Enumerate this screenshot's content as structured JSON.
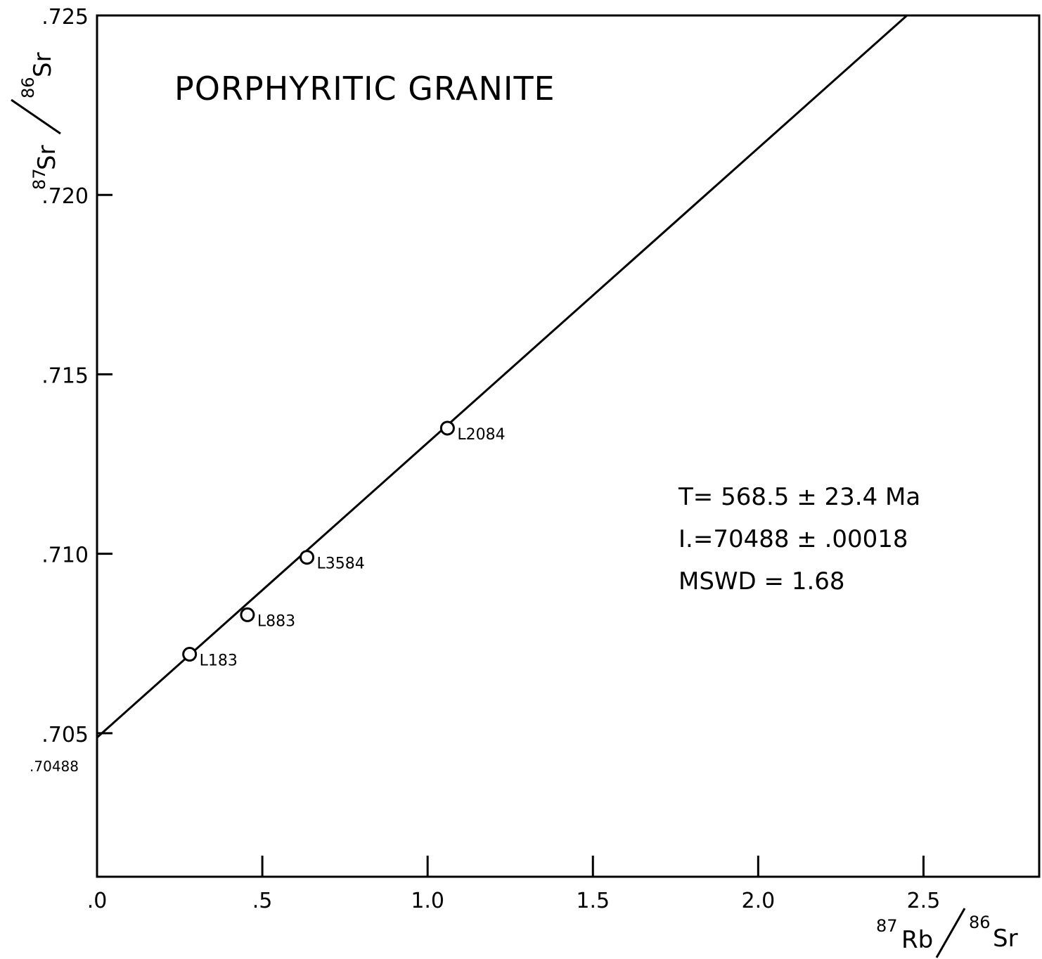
{
  "chart_data": {
    "type": "scatter",
    "title": "PORPHYRITIC GRANITE",
    "xlabel": {
      "iso1": "87",
      "el1": "Rb",
      "iso2": "86",
      "el2": "Sr"
    },
    "ylabel": {
      "iso1": "87",
      "el1": "Sr",
      "iso2": "86",
      "el2": "Sr"
    },
    "xlim": [
      0,
      2.85
    ],
    "ylim": [
      0.701,
      0.725
    ],
    "x_ticks": [
      {
        "value": 0.0,
        "label": ".0"
      },
      {
        "value": 0.5,
        "label": ".5"
      },
      {
        "value": 1.0,
        "label": "1.0"
      },
      {
        "value": 1.5,
        "label": "1.5"
      },
      {
        "value": 2.0,
        "label": "2.0"
      },
      {
        "value": 2.5,
        "label": "2.5"
      }
    ],
    "y_ticks": [
      {
        "value": 0.705,
        "label": ".705"
      },
      {
        "value": 0.71,
        "label": ".710"
      },
      {
        "value": 0.715,
        "label": ".715"
      },
      {
        "value": 0.72,
        "label": ".720"
      },
      {
        "value": 0.725,
        "label": ".725"
      }
    ],
    "y_extra_label": {
      "value": 0.70488,
      "label": ".70488"
    },
    "points": [
      {
        "label": "L183",
        "x": 0.28,
        "y": 0.7072
      },
      {
        "label": "L883",
        "x": 0.455,
        "y": 0.7083
      },
      {
        "label": "L3584",
        "x": 0.635,
        "y": 0.7099
      },
      {
        "label": "L2084",
        "x": 1.06,
        "y": 0.7135
      }
    ],
    "isochron": {
      "x0": 0.0,
      "y0": 0.70488,
      "x1": 2.45,
      "y1": 0.725
    },
    "annotations": [
      "T= 568.5 ± 23.4 Ma",
      "I.=70488 ± .00018",
      "MSWD = 1.68"
    ],
    "grid": false
  }
}
